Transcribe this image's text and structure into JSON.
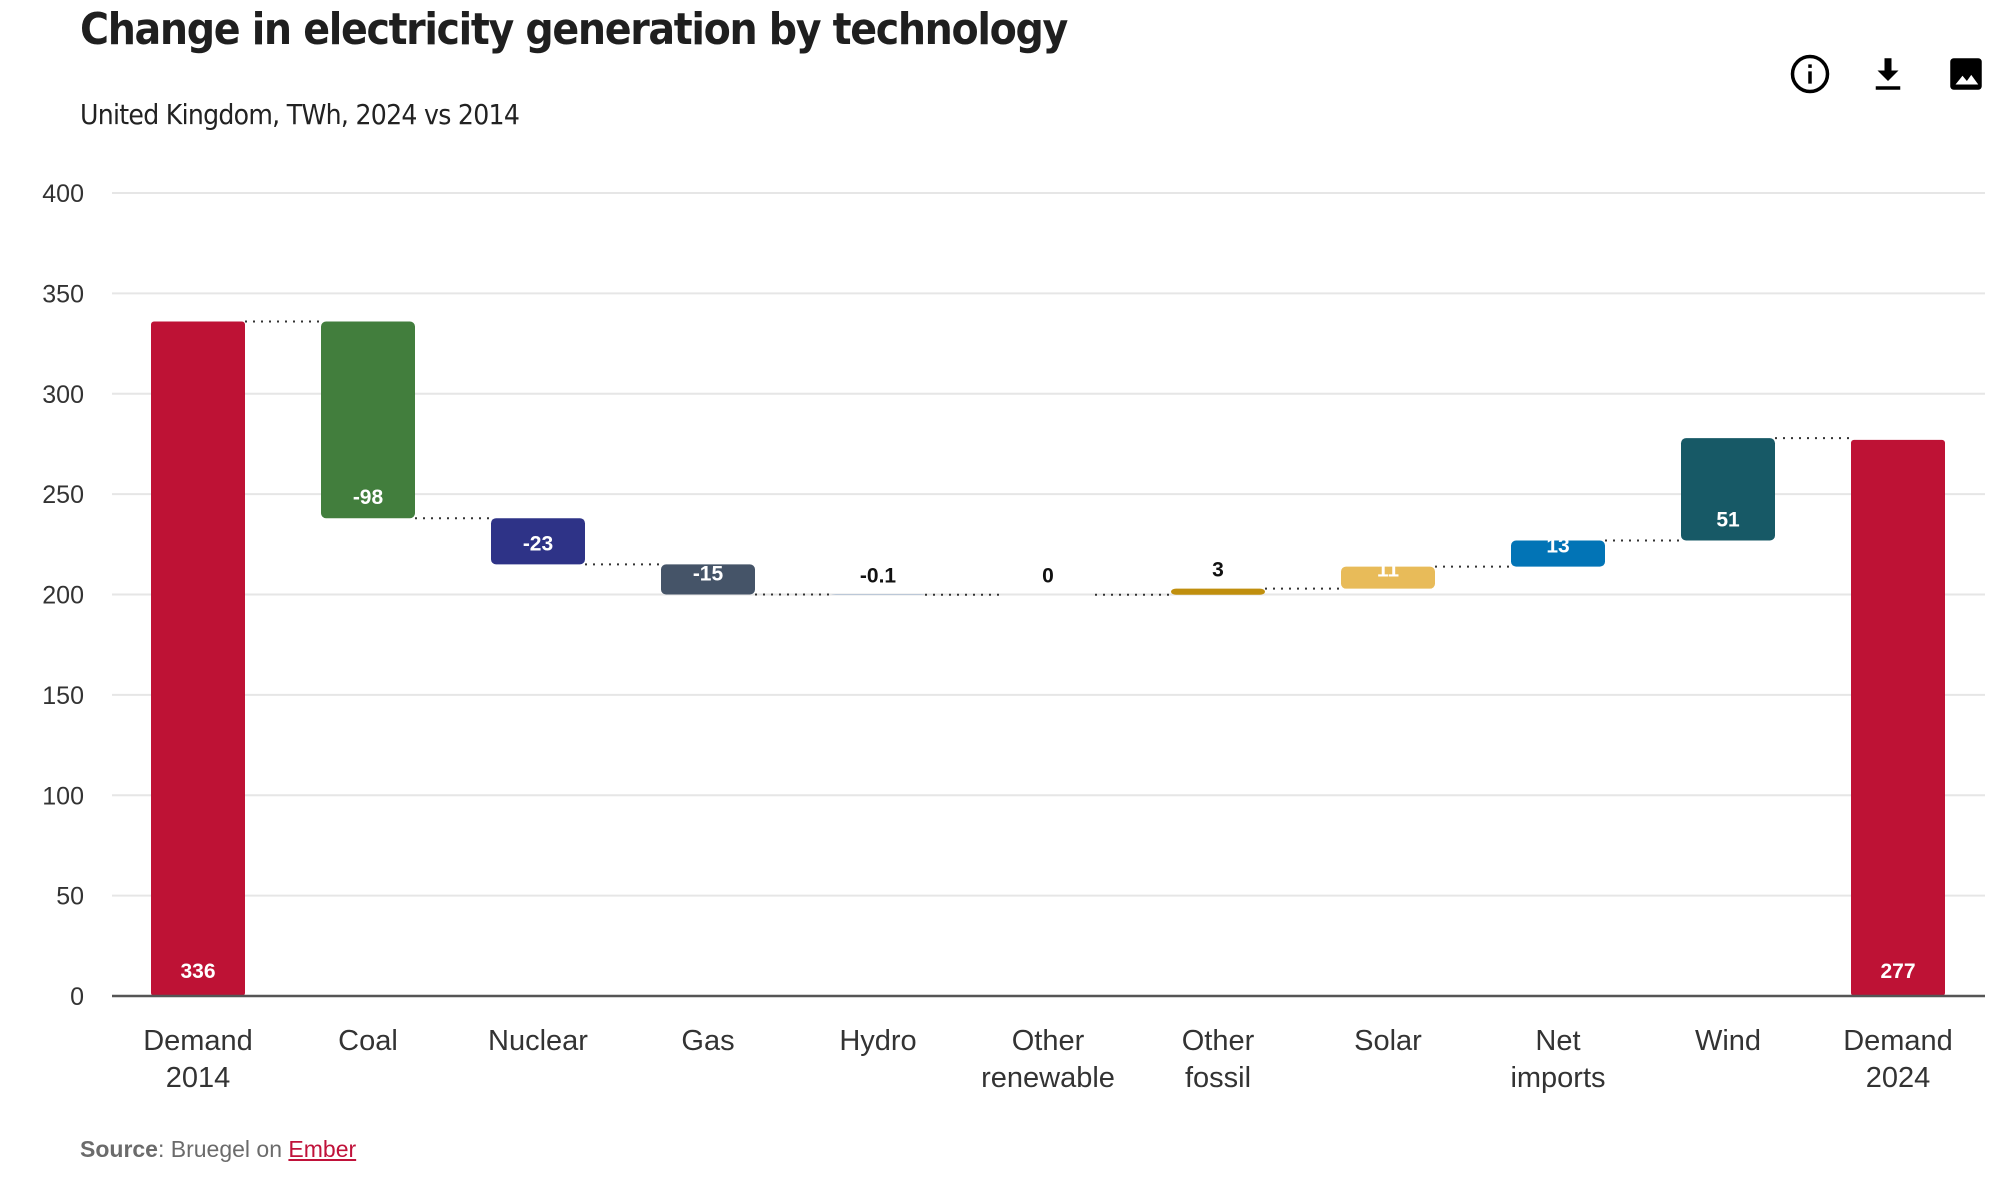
{
  "header": {
    "title": "Change in electricity generation by technology",
    "subtitle": "United Kingdom, TWh, 2024 vs 2014"
  },
  "toolbar": {
    "icons": [
      "info-icon",
      "download-icon",
      "image-icon"
    ]
  },
  "footer": {
    "source_label": "Source",
    "source_sep": ": Bruegel on ",
    "source_link": "Ember"
  },
  "chart_data": {
    "type": "waterfall",
    "title": "Change in electricity generation by technology",
    "subtitle": "United Kingdom, TWh, 2024 vs 2014",
    "xlabel": "",
    "ylabel": "",
    "ylim": [
      0,
      400
    ],
    "yticks": [
      0,
      50,
      100,
      150,
      200,
      250,
      300,
      350,
      400
    ],
    "grid": true,
    "categories": [
      {
        "label": [
          "Demand",
          "2014"
        ],
        "kind": "total",
        "value": 336,
        "display": "336",
        "color": "#be1235"
      },
      {
        "label": [
          "Coal"
        ],
        "kind": "delta",
        "value": -98,
        "display": "-98",
        "color": "#427e3d"
      },
      {
        "label": [
          "Nuclear"
        ],
        "kind": "delta",
        "value": -23,
        "display": "-23",
        "color": "#2e3387"
      },
      {
        "label": [
          "Gas"
        ],
        "kind": "delta",
        "value": -15,
        "display": "-15",
        "color": "#455468"
      },
      {
        "label": [
          "Hydro"
        ],
        "kind": "delta",
        "value": -0.1,
        "display": "-0.1",
        "color": "#3a6fb0"
      },
      {
        "label": [
          "Other",
          "renewable"
        ],
        "kind": "delta",
        "value": 0,
        "display": "0",
        "color": "#5a9a4a"
      },
      {
        "label": [
          "Other",
          "fossil"
        ],
        "kind": "delta",
        "value": 3,
        "display": "3",
        "color": "#c08f0e"
      },
      {
        "label": [
          "Solar"
        ],
        "kind": "delta",
        "value": 11,
        "display": "11",
        "color": "#e8bb59"
      },
      {
        "label": [
          "Net",
          "imports"
        ],
        "kind": "delta",
        "value": 13,
        "display": "13",
        "color": "#0274b6"
      },
      {
        "label": [
          "Wind"
        ],
        "kind": "delta",
        "value": 51,
        "display": "51",
        "color": "#175966"
      },
      {
        "label": [
          "Demand",
          "2024"
        ],
        "kind": "total",
        "value": 277,
        "display": "277",
        "color": "#be1235"
      }
    ]
  }
}
